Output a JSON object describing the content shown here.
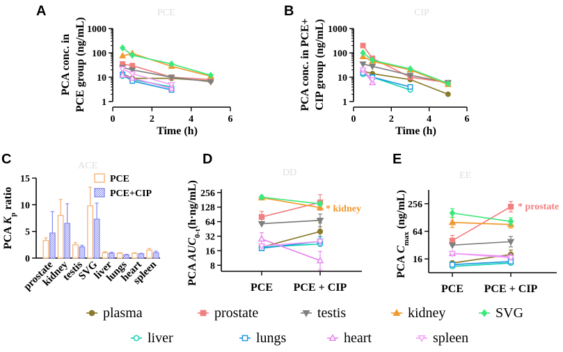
{
  "figure": {
    "panel_labels": [
      "A",
      "B",
      "C",
      "D",
      "E"
    ],
    "watermarks": [
      "PCE",
      "CIP",
      "ACE",
      "DD",
      "EE"
    ],
    "legend": [
      {
        "name": "plasma",
        "color": "#8b7a2c",
        "marker": "circle-filled"
      },
      {
        "name": "prostate",
        "color": "#f27f7f",
        "marker": "square-filled"
      },
      {
        "name": "testis",
        "color": "#7f7f7f",
        "marker": "triangle-down-filled"
      },
      {
        "name": "kidney",
        "color": "#f2992e",
        "marker": "triangle-up-filled"
      },
      {
        "name": "SVG",
        "color": "#3de87a",
        "marker": "diamond-filled"
      },
      {
        "name": "liver",
        "color": "#14d2b4",
        "marker": "circle-open"
      },
      {
        "name": "lungs",
        "color": "#2099e0",
        "marker": "square-open"
      },
      {
        "name": "heart",
        "color": "#e884f0",
        "marker": "triangle-up-open"
      },
      {
        "name": "spleen",
        "color": "#f0a0f5",
        "marker": "triangle-down-open"
      }
    ]
  },
  "chart_data": [
    {
      "panel": "A",
      "type": "line",
      "yscale": "log",
      "ylabel_lines": [
        "PCA conc. in",
        "PCE group (ng/mL)"
      ],
      "xlabel": "Time (h)",
      "xlim": [
        0,
        6
      ],
      "ylim": [
        1,
        1000
      ],
      "xticks": [
        0,
        2,
        4,
        6
      ],
      "yticks": [
        1,
        10,
        100,
        1000
      ],
      "series": [
        {
          "name": "plasma",
          "x": [
            0.5,
            1,
            3,
            5
          ],
          "y": [
            14,
            9,
            9,
            7
          ]
        },
        {
          "name": "prostate",
          "x": [
            0.5,
            1,
            3,
            5
          ],
          "y": [
            35,
            30,
            10,
            8
          ]
        },
        {
          "name": "testis",
          "x": [
            0.5,
            1,
            3,
            5
          ],
          "y": [
            25,
            20,
            10,
            6.5
          ]
        },
        {
          "name": "kidney",
          "x": [
            0.5,
            1,
            3,
            5
          ],
          "y": [
            75,
            95,
            28,
            11
          ]
        },
        {
          "name": "SVG",
          "x": [
            0.5,
            1,
            3,
            5
          ],
          "y": [
            160,
            80,
            35,
            12
          ]
        },
        {
          "name": "liver",
          "x": [
            0.5,
            1,
            3
          ],
          "y": [
            11,
            8,
            4
          ]
        },
        {
          "name": "lungs",
          "x": [
            0.5,
            1,
            3
          ],
          "y": [
            13,
            7,
            3
          ]
        },
        {
          "name": "heart",
          "x": [
            0.5,
            1,
            3
          ],
          "y": [
            12,
            9,
            3.5
          ]
        },
        {
          "name": "spleen",
          "x": [
            0.5,
            1,
            3
          ],
          "y": [
            22,
            14,
            5
          ]
        }
      ]
    },
    {
      "panel": "B",
      "type": "line",
      "yscale": "log",
      "ylabel_lines": [
        "PCA conc. in PCE+",
        "CIP group (ng/mL)"
      ],
      "xlabel": "Time (h)",
      "xlim": [
        0,
        6
      ],
      "ylim": [
        1,
        1000
      ],
      "xticks": [
        0,
        2,
        4,
        6
      ],
      "yticks": [
        1,
        10,
        100,
        1000
      ],
      "series": [
        {
          "name": "plasma",
          "x": [
            0.5,
            1,
            3,
            5
          ],
          "y": [
            18,
            14,
            8,
            2
          ]
        },
        {
          "name": "prostate",
          "x": [
            0.5,
            1,
            3,
            5
          ],
          "y": [
            200,
            60,
            10,
            6
          ]
        },
        {
          "name": "testis",
          "x": [
            0.5,
            1,
            3,
            5
          ],
          "y": [
            35,
            28,
            12,
            6
          ]
        },
        {
          "name": "kidney",
          "x": [
            0.5,
            1,
            3,
            5
          ],
          "y": [
            70,
            45,
            20,
            5
          ]
        },
        {
          "name": "SVG",
          "x": [
            0.5,
            1,
            3,
            5
          ],
          "y": [
            100,
            50,
            22,
            5.5
          ]
        },
        {
          "name": "liver",
          "x": [
            0.5,
            1,
            3
          ],
          "y": [
            13,
            10,
            3
          ]
        },
        {
          "name": "lungs",
          "x": [
            0.5,
            1,
            3
          ],
          "y": [
            15,
            10,
            4
          ]
        },
        {
          "name": "heart",
          "x": [
            0.5,
            1
          ],
          "y": [
            20,
            6
          ]
        },
        {
          "name": "spleen",
          "x": [
            0.5,
            1
          ],
          "y": [
            20,
            8
          ]
        }
      ]
    },
    {
      "panel": "C",
      "type": "bar",
      "ylabel": "PCA Kp ratio",
      "ylabel_main": "PCA ",
      "ylabel_k": "K",
      "ylabel_sub": "p",
      "ylabel_rest": " ratio",
      "ylim": [
        0,
        15
      ],
      "yticks": [
        0,
        5,
        10,
        15
      ],
      "categories": [
        "prostate",
        "kidney",
        "testis",
        "SVG",
        "liver",
        "lungs",
        "heart",
        "spleen"
      ],
      "series": [
        {
          "name": "PCE",
          "values": [
            3.3,
            8.0,
            2.5,
            9.8,
            1.0,
            0.9,
            0.9,
            1.5
          ],
          "errors": [
            0.5,
            3.0,
            0.4,
            3.5,
            0.2,
            0.1,
            0.1,
            0.3
          ]
        },
        {
          "name": "PCE+CIP",
          "values": [
            4.7,
            6.5,
            2.1,
            7.3,
            0.9,
            0.6,
            0.8,
            1.0
          ],
          "errors": [
            4.0,
            3.7,
            0.3,
            3.0,
            0.2,
            0.1,
            0.1,
            0.3
          ]
        }
      ]
    },
    {
      "panel": "D",
      "type": "line",
      "yscale": "log2",
      "ylabel": "PCA AUC0-t(h·ng/mL)",
      "ylabel_main": "PCA ",
      "ylabel_it": "AUC",
      "ylabel_sub": "0-t",
      "ylabel_rest": "(h·ng/mL)",
      "categories": [
        "PCE",
        "PCE + CIP"
      ],
      "ylim": [
        6,
        300
      ],
      "yticks": [
        8,
        16,
        32,
        64,
        128,
        256
      ],
      "annotation": "* kidney",
      "series": [
        {
          "name": "plasma",
          "values": [
            19,
            40
          ]
        },
        {
          "name": "prostate",
          "values": [
            80,
            160
          ]
        },
        {
          "name": "testis",
          "values": [
            58,
            68
          ]
        },
        {
          "name": "kidney",
          "values": [
            200,
            125
          ]
        },
        {
          "name": "SVG",
          "values": [
            205,
            150
          ]
        },
        {
          "name": "liver",
          "values": [
            19,
            22
          ]
        },
        {
          "name": "lungs",
          "values": [
            18,
            25
          ]
        },
        {
          "name": "heart",
          "values": [
            28,
            10
          ]
        },
        {
          "name": "spleen",
          "values": [
            20,
            25
          ]
        }
      ]
    },
    {
      "panel": "E",
      "type": "line",
      "yscale": "log2",
      "ylabel": "PCA Cmax (ng/mL)",
      "ylabel_main": "PCA ",
      "ylabel_it": "C",
      "ylabel_sub": "max",
      "ylabel_rest": " (ng/mL)",
      "categories": [
        "PCE",
        "PCE + CIP"
      ],
      "ylim": [
        8,
        512
      ],
      "yticks": [
        16,
        64,
        256
      ],
      "annotation": "* prostate",
      "series": [
        {
          "name": "plasma",
          "values": [
            13,
            20
          ]
        },
        {
          "name": "prostate",
          "values": [
            40,
            220
          ]
        },
        {
          "name": "testis",
          "values": [
            32,
            38
          ]
        },
        {
          "name": "kidney",
          "values": [
            100,
            90
          ]
        },
        {
          "name": "SVG",
          "values": [
            160,
            105
          ]
        },
        {
          "name": "liver",
          "values": [
            11,
            13
          ]
        },
        {
          "name": "lungs",
          "values": [
            12,
            14
          ]
        },
        {
          "name": "heart",
          "values": [
            21,
            18
          ]
        },
        {
          "name": "spleen",
          "values": [
            21,
            17
          ]
        }
      ]
    }
  ]
}
